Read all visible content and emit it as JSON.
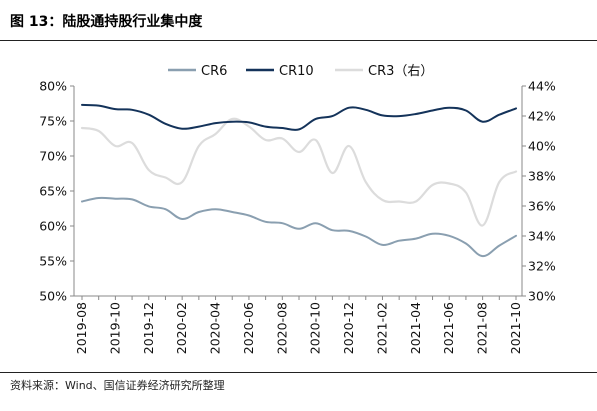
{
  "figure": {
    "title": "图 13：陆股通持股行业集中度",
    "source": "资料来源：Wind、国信证券经济研究所整理"
  },
  "chart_data": {
    "type": "line",
    "title": "",
    "xlabel": "",
    "ylabel": "",
    "x": [
      "2019-08",
      "2019-09",
      "2019-10",
      "2019-11",
      "2019-12",
      "2020-01",
      "2020-02",
      "2020-03",
      "2020-04",
      "2020-05",
      "2020-06",
      "2020-07",
      "2020-08",
      "2020-09",
      "2020-10",
      "2020-11",
      "2020-12",
      "2021-01",
      "2021-02",
      "2021-03",
      "2021-04",
      "2021-05",
      "2021-06",
      "2021-07",
      "2021-08",
      "2021-09",
      "2021-10"
    ],
    "x_tick_labels": [
      "2019-08",
      "2019-10",
      "2019-12",
      "2020-02",
      "2020-04",
      "2020-06",
      "2020-08",
      "2020-10",
      "2020-12",
      "2021-02",
      "2021-04",
      "2021-06",
      "2021-08",
      "2021-10"
    ],
    "y_left": {
      "ylim": [
        50,
        80
      ],
      "ticks": [
        "50%",
        "55%",
        "60%",
        "65%",
        "70%",
        "75%",
        "80%"
      ]
    },
    "y_right": {
      "ylim": [
        30,
        44
      ],
      "ticks": [
        "30%",
        "32%",
        "34%",
        "36%",
        "38%",
        "40%",
        "42%",
        "44%"
      ]
    },
    "legend_position": "top-center",
    "grid": false,
    "series": [
      {
        "name": "CR6",
        "axis": "left",
        "color": "#8a9fb0",
        "values": [
          63.5,
          64.0,
          63.9,
          63.8,
          62.8,
          62.4,
          61.0,
          62.0,
          62.4,
          62.0,
          61.5,
          60.6,
          60.4,
          59.6,
          60.4,
          59.4,
          59.3,
          58.5,
          57.3,
          57.9,
          58.2,
          58.9,
          58.6,
          57.5,
          55.7,
          57.2,
          58.6
        ]
      },
      {
        "name": "CR10",
        "axis": "left",
        "color": "#14335a",
        "values": [
          77.3,
          77.2,
          76.7,
          76.6,
          75.9,
          74.6,
          73.9,
          74.2,
          74.7,
          74.9,
          74.8,
          74.2,
          74.0,
          73.8,
          75.3,
          75.7,
          76.9,
          76.6,
          75.8,
          75.7,
          76.0,
          76.5,
          76.9,
          76.5,
          74.9,
          75.9,
          76.8
        ]
      },
      {
        "name": "CR3（右）",
        "axis": "right",
        "color": "#dcdcdc",
        "values": [
          41.2,
          41.0,
          40.0,
          40.2,
          38.4,
          37.9,
          37.6,
          40.0,
          40.8,
          41.8,
          41.3,
          40.4,
          40.5,
          39.6,
          40.4,
          38.2,
          40.0,
          37.6,
          36.4,
          36.3,
          36.3,
          37.4,
          37.5,
          36.9,
          34.7,
          37.6,
          38.3
        ]
      }
    ]
  }
}
